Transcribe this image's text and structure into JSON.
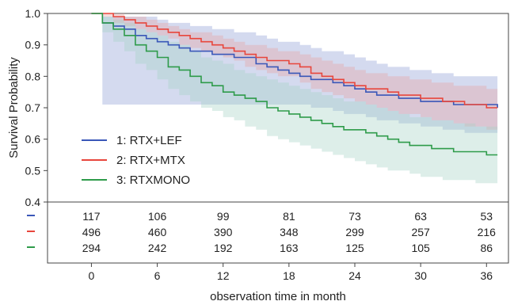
{
  "chart_data": {
    "type": "line",
    "subtype": "kaplan-meier-survival",
    "xlabel": "observation time in month",
    "ylabel": "Survival Probability",
    "xlim": [
      -4,
      38
    ],
    "ylim": [
      0.4,
      1.0
    ],
    "x_ticks": [
      0,
      6,
      12,
      18,
      24,
      30,
      36
    ],
    "x_tick_labels": [
      "0",
      "6",
      "12",
      "18",
      "24",
      "30",
      "36"
    ],
    "y_ticks": [
      0.4,
      0.5,
      0.6,
      0.7,
      0.8,
      0.9,
      1.0
    ],
    "y_tick_labels": [
      "0.4",
      "0.5",
      "0.6",
      "0.7",
      "0.8",
      "0.9",
      "1.0"
    ],
    "legend_position": "lower-left",
    "confidence_bands": true,
    "series": [
      {
        "name": "1: RTX+LEF",
        "color": "#3a57b8",
        "band_color": "#8e9fd6",
        "x": [
          0,
          1,
          2,
          3,
          4,
          5,
          6,
          7,
          8,
          9,
          10,
          11,
          12,
          13,
          14,
          15,
          16,
          17,
          18,
          19,
          20,
          21,
          22,
          23,
          24,
          25,
          26,
          27,
          28,
          29,
          30,
          31,
          32,
          33,
          34,
          35,
          36,
          37
        ],
        "y": [
          1.0,
          0.97,
          0.96,
          0.95,
          0.93,
          0.92,
          0.91,
          0.9,
          0.89,
          0.88,
          0.88,
          0.87,
          0.87,
          0.86,
          0.86,
          0.84,
          0.83,
          0.82,
          0.81,
          0.8,
          0.79,
          0.79,
          0.78,
          0.77,
          0.76,
          0.75,
          0.74,
          0.74,
          0.73,
          0.73,
          0.72,
          0.72,
          0.72,
          0.71,
          0.71,
          0.71,
          0.71,
          0.7
        ],
        "lower": [
          1.0,
          0.71,
          0.71,
          0.71,
          0.71,
          0.71,
          0.71,
          0.71,
          0.71,
          0.71,
          0.71,
          0.71,
          0.71,
          0.71,
          0.71,
          0.71,
          0.71,
          0.71,
          0.71,
          0.71,
          0.7,
          0.7,
          0.69,
          0.68,
          0.68,
          0.67,
          0.66,
          0.66,
          0.65,
          0.65,
          0.64,
          0.64,
          0.63,
          0.63,
          0.62,
          0.62,
          0.62,
          0.61
        ],
        "upper": [
          1.0,
          0.99,
          0.99,
          0.99,
          0.99,
          0.99,
          0.98,
          0.97,
          0.97,
          0.96,
          0.96,
          0.95,
          0.95,
          0.94,
          0.94,
          0.93,
          0.92,
          0.91,
          0.91,
          0.9,
          0.89,
          0.88,
          0.88,
          0.87,
          0.86,
          0.85,
          0.84,
          0.83,
          0.83,
          0.82,
          0.82,
          0.81,
          0.81,
          0.8,
          0.8,
          0.8,
          0.8,
          0.8
        ]
      },
      {
        "name": "2: RTX+MTX",
        "color": "#e8463c",
        "band_color": "#e7a3a3",
        "x": [
          0,
          1,
          2,
          3,
          4,
          5,
          6,
          7,
          8,
          9,
          10,
          11,
          12,
          13,
          14,
          15,
          16,
          17,
          18,
          19,
          20,
          21,
          22,
          23,
          24,
          25,
          26,
          27,
          28,
          29,
          30,
          31,
          32,
          33,
          34,
          35,
          36,
          37
        ],
        "y": [
          1.0,
          1.0,
          0.99,
          0.98,
          0.97,
          0.96,
          0.95,
          0.94,
          0.93,
          0.92,
          0.91,
          0.9,
          0.89,
          0.88,
          0.87,
          0.86,
          0.85,
          0.85,
          0.84,
          0.83,
          0.81,
          0.8,
          0.79,
          0.78,
          0.77,
          0.76,
          0.76,
          0.75,
          0.74,
          0.74,
          0.73,
          0.73,
          0.72,
          0.72,
          0.71,
          0.71,
          0.7,
          0.7
        ],
        "lower": [
          1.0,
          0.99,
          0.97,
          0.96,
          0.95,
          0.94,
          0.93,
          0.92,
          0.9,
          0.89,
          0.88,
          0.87,
          0.86,
          0.85,
          0.83,
          0.82,
          0.81,
          0.8,
          0.8,
          0.78,
          0.76,
          0.75,
          0.74,
          0.73,
          0.72,
          0.71,
          0.7,
          0.69,
          0.68,
          0.68,
          0.67,
          0.66,
          0.66,
          0.65,
          0.64,
          0.64,
          0.63,
          0.63
        ],
        "upper": [
          1.0,
          1.0,
          1.0,
          0.99,
          0.99,
          0.98,
          0.97,
          0.96,
          0.95,
          0.94,
          0.94,
          0.93,
          0.92,
          0.91,
          0.9,
          0.9,
          0.89,
          0.88,
          0.88,
          0.87,
          0.86,
          0.85,
          0.84,
          0.83,
          0.82,
          0.81,
          0.81,
          0.8,
          0.8,
          0.79,
          0.79,
          0.78,
          0.78,
          0.77,
          0.77,
          0.77,
          0.76,
          0.76
        ]
      },
      {
        "name": "3: RTXMONO",
        "color": "#2e9b4a",
        "band_color": "#a5d3c6",
        "x": [
          0,
          1,
          2,
          3,
          4,
          5,
          6,
          7,
          8,
          9,
          10,
          11,
          12,
          13,
          14,
          15,
          16,
          17,
          18,
          19,
          20,
          21,
          22,
          23,
          24,
          25,
          26,
          27,
          28,
          29,
          30,
          31,
          32,
          33,
          34,
          35,
          36,
          37
        ],
        "y": [
          1.0,
          0.97,
          0.95,
          0.93,
          0.9,
          0.88,
          0.86,
          0.83,
          0.82,
          0.8,
          0.78,
          0.77,
          0.75,
          0.74,
          0.73,
          0.72,
          0.7,
          0.69,
          0.68,
          0.67,
          0.66,
          0.65,
          0.64,
          0.63,
          0.63,
          0.62,
          0.61,
          0.6,
          0.59,
          0.58,
          0.58,
          0.57,
          0.57,
          0.56,
          0.56,
          0.56,
          0.55,
          0.55
        ],
        "lower": [
          1.0,
          0.94,
          0.91,
          0.88,
          0.84,
          0.82,
          0.79,
          0.76,
          0.74,
          0.72,
          0.7,
          0.69,
          0.67,
          0.66,
          0.64,
          0.63,
          0.61,
          0.6,
          0.59,
          0.58,
          0.57,
          0.56,
          0.55,
          0.54,
          0.53,
          0.52,
          0.51,
          0.5,
          0.5,
          0.49,
          0.48,
          0.48,
          0.47,
          0.47,
          0.47,
          0.46,
          0.46,
          0.46
        ],
        "upper": [
          1.0,
          0.99,
          0.98,
          0.97,
          0.95,
          0.94,
          0.93,
          0.91,
          0.9,
          0.88,
          0.86,
          0.85,
          0.84,
          0.82,
          0.81,
          0.8,
          0.79,
          0.78,
          0.77,
          0.76,
          0.75,
          0.74,
          0.73,
          0.72,
          0.72,
          0.71,
          0.7,
          0.69,
          0.68,
          0.67,
          0.67,
          0.66,
          0.66,
          0.65,
          0.65,
          0.64,
          0.64,
          0.64
        ]
      }
    ],
    "risk_table": {
      "times": [
        0,
        6,
        12,
        18,
        24,
        30,
        36
      ],
      "rows": [
        {
          "color": "#3a57b8",
          "values": [
            "117",
            "106",
            "99",
            "81",
            "73",
            "63",
            "53"
          ]
        },
        {
          "color": "#e8463c",
          "values": [
            "496",
            "460",
            "390",
            "348",
            "299",
            "257",
            "216"
          ]
        },
        {
          "color": "#2e9b4a",
          "values": [
            "294",
            "242",
            "192",
            "163",
            "125",
            "105",
            "86"
          ]
        }
      ]
    }
  }
}
